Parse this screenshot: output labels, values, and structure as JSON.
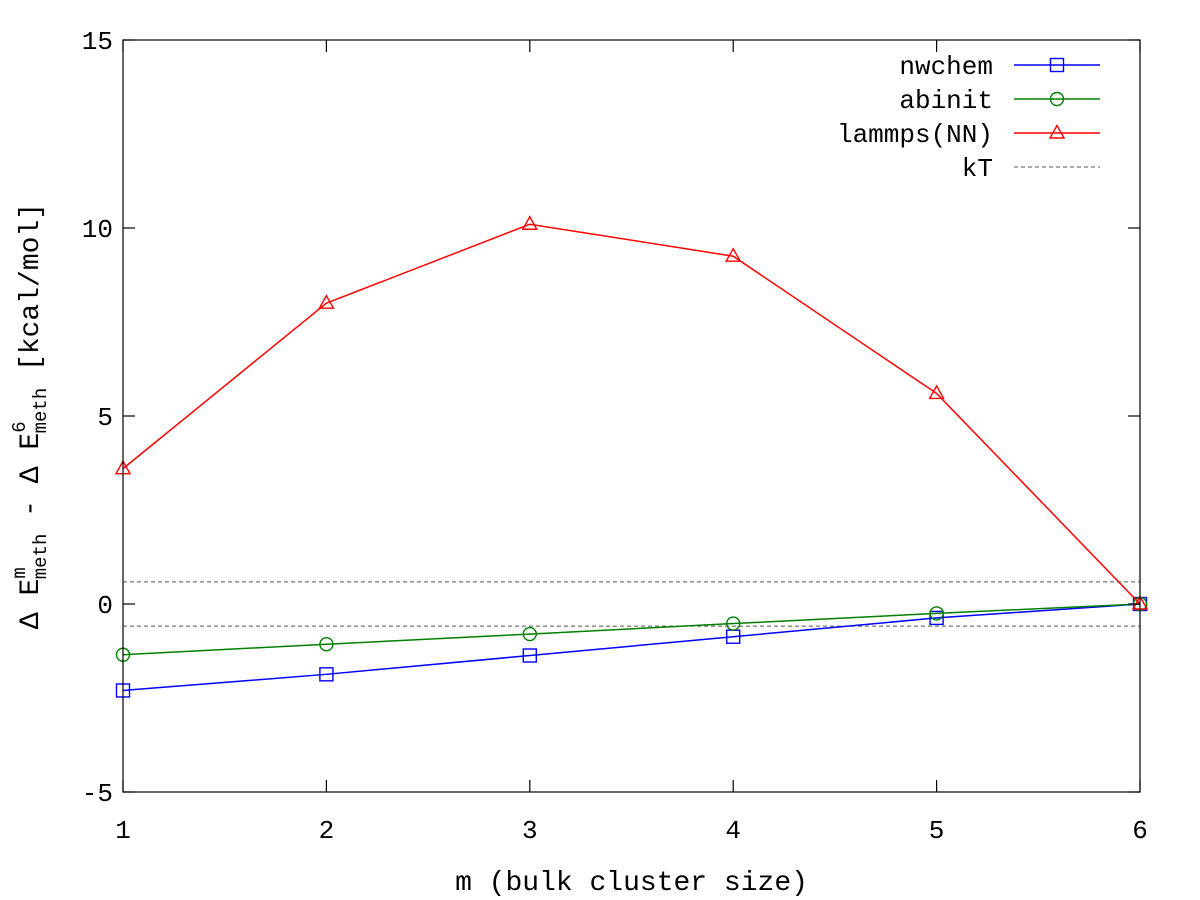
{
  "chart_data": {
    "type": "line",
    "title": "",
    "xlabel": "m (bulk cluster size)",
    "ylabel": {
      "parts": [
        {
          "text": "Δ E",
          "style": "normal"
        },
        {
          "text": "m",
          "style": "sup"
        },
        {
          "text": "meth",
          "style": "sub"
        },
        {
          "text": " - Δ E",
          "style": "normal"
        },
        {
          "text": "6",
          "style": "sup"
        },
        {
          "text": "meth",
          "style": "sub"
        },
        {
          "text": " [kcal/mol]",
          "style": "normal"
        }
      ]
    },
    "xlim": [
      1,
      6
    ],
    "ylim": [
      -5,
      15
    ],
    "xticks": [
      1,
      2,
      3,
      4,
      5,
      6
    ],
    "yticks": [
      -5,
      0,
      5,
      10,
      15
    ],
    "grid": false,
    "legend_position": "top-right",
    "x": [
      1,
      2,
      3,
      4,
      5,
      6
    ],
    "series": [
      {
        "name": "nwchem",
        "color": "#0000ff",
        "marker": "square",
        "values": [
          -2.3,
          -1.87,
          -1.37,
          -0.87,
          -0.37,
          0.0
        ]
      },
      {
        "name": "abinit",
        "color": "#008000",
        "marker": "circle",
        "values": [
          -1.35,
          -1.07,
          -0.8,
          -0.52,
          -0.25,
          0.0
        ]
      },
      {
        "name": "lammps(NN)",
        "color": "#ff0000",
        "marker": "triangle",
        "values": [
          3.6,
          8.0,
          10.1,
          9.25,
          5.6,
          0.0
        ]
      }
    ],
    "reference_lines": {
      "name": "kT",
      "color": "#555555",
      "style": "dashed",
      "values": [
        0.59,
        -0.59
      ]
    }
  }
}
